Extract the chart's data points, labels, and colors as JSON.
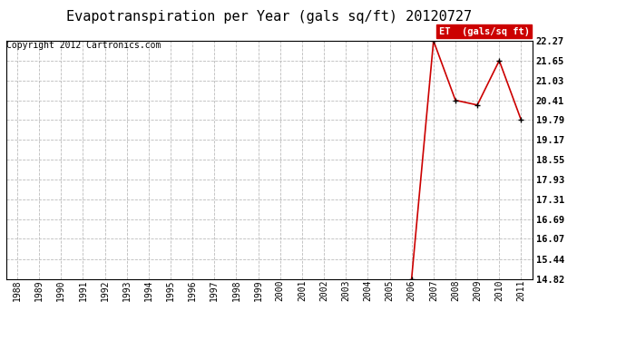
{
  "title": "Evapotranspiration per Year (gals sq/ft) 20120727",
  "copyright": "Copyright 2012 Cartronics.com",
  "legend_label": "ET  (gals/sq ft)",
  "years": [
    1988,
    1989,
    1990,
    1991,
    1992,
    1993,
    1994,
    1995,
    1996,
    1997,
    1998,
    1999,
    2000,
    2001,
    2002,
    2003,
    2004,
    2005,
    2006,
    2007,
    2008,
    2009,
    2010,
    2011
  ],
  "values": [
    null,
    null,
    null,
    null,
    null,
    null,
    null,
    null,
    null,
    null,
    null,
    null,
    null,
    null,
    null,
    null,
    null,
    null,
    14.82,
    22.27,
    20.41,
    20.26,
    21.65,
    19.79
  ],
  "y_ticks": [
    14.82,
    15.44,
    16.07,
    16.69,
    17.31,
    17.93,
    18.55,
    19.17,
    19.79,
    20.41,
    21.03,
    21.65,
    22.27
  ],
  "ylim": [
    14.82,
    22.27
  ],
  "line_color": "#cc0000",
  "marker_color": "#000000",
  "bg_color": "#ffffff",
  "grid_color": "#bbbbbb",
  "title_fontsize": 11,
  "copyright_fontsize": 7,
  "legend_bg": "#cc0000",
  "legend_text_color": "#ffffff",
  "ytick_fontsize": 7.5,
  "xtick_fontsize": 7
}
